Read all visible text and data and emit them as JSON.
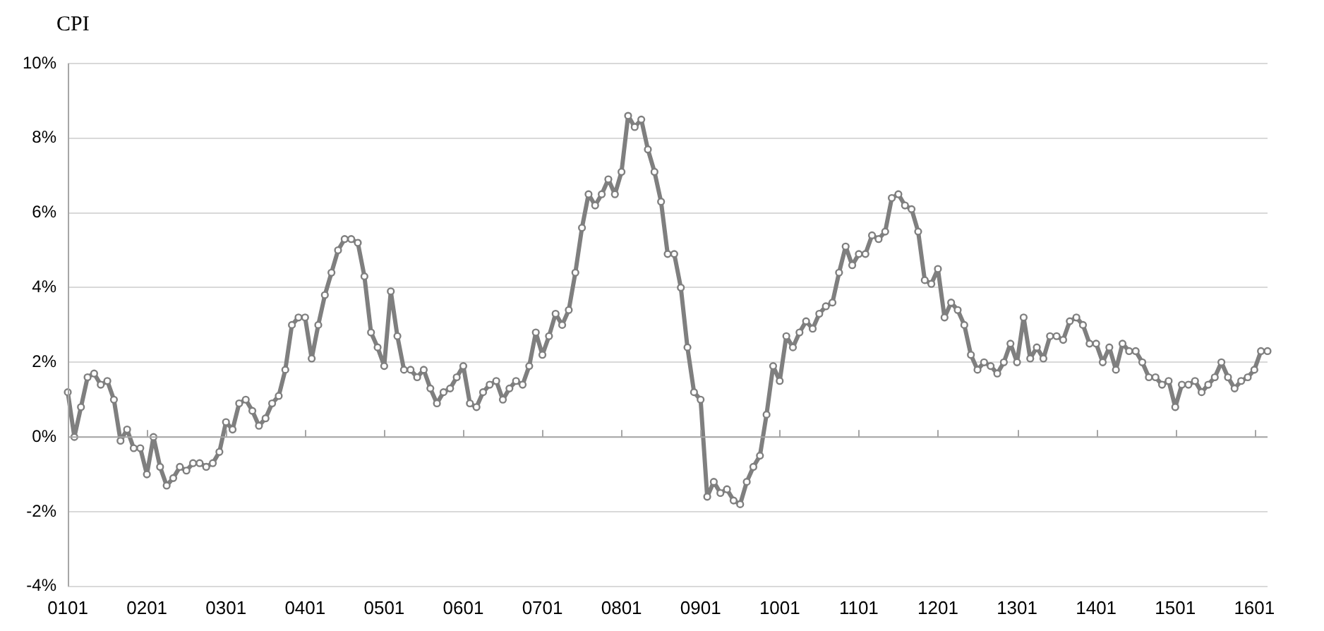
{
  "chart_data": {
    "type": "line",
    "ylabel": "CPI",
    "categories": [
      "0101",
      null,
      null,
      null,
      null,
      null,
      null,
      null,
      null,
      null,
      null,
      null,
      "0201",
      null,
      null,
      null,
      null,
      null,
      null,
      null,
      null,
      null,
      null,
      null,
      "0301",
      null,
      null,
      null,
      null,
      null,
      null,
      null,
      null,
      null,
      null,
      null,
      "0401",
      null,
      null,
      null,
      null,
      null,
      null,
      null,
      null,
      null,
      null,
      null,
      "0501",
      null,
      null,
      null,
      null,
      null,
      null,
      null,
      null,
      null,
      null,
      null,
      "0601",
      null,
      null,
      null,
      null,
      null,
      null,
      null,
      null,
      null,
      null,
      null,
      "0701",
      null,
      null,
      null,
      null,
      null,
      null,
      null,
      null,
      null,
      null,
      null,
      "0801",
      null,
      null,
      null,
      null,
      null,
      null,
      null,
      null,
      null,
      null,
      null,
      "0901",
      null,
      null,
      null,
      null,
      null,
      null,
      null,
      null,
      null,
      null,
      null,
      "1001",
      null,
      null,
      null,
      null,
      null,
      null,
      null,
      null,
      null,
      null,
      null,
      "1101",
      null,
      null,
      null,
      null,
      null,
      null,
      null,
      null,
      null,
      null,
      null,
      "1201",
      null,
      null,
      null,
      null,
      null,
      null,
      null,
      null,
      null,
      null,
      null,
      "1301",
      null,
      null,
      null,
      null,
      null,
      null,
      null,
      null,
      null,
      null,
      null,
      "1401",
      null,
      null,
      null,
      null,
      null,
      null,
      null,
      null,
      null,
      null,
      null,
      "1501",
      null,
      null,
      null,
      null,
      null,
      null,
      null,
      null,
      null,
      null,
      null,
      "1601",
      null,
      null
    ],
    "series": [
      {
        "color": "#7f7f7f",
        "values": [
          1.2,
          0.0,
          0.8,
          1.6,
          1.7,
          1.4,
          1.5,
          1.0,
          -0.1,
          0.2,
          -0.3,
          -0.3,
          -1.0,
          0.0,
          -0.8,
          -1.3,
          -1.1,
          -0.8,
          -0.9,
          -0.7,
          -0.7,
          -0.8,
          -0.7,
          -0.4,
          0.4,
          0.2,
          0.9,
          1.0,
          0.7,
          0.3,
          0.5,
          0.9,
          1.1,
          1.8,
          3.0,
          3.2,
          3.2,
          2.1,
          3.0,
          3.8,
          4.4,
          5.0,
          5.3,
          5.3,
          5.2,
          4.3,
          2.8,
          2.4,
          1.9,
          3.9,
          2.7,
          1.8,
          1.8,
          1.6,
          1.8,
          1.3,
          0.9,
          1.2,
          1.3,
          1.6,
          1.9,
          0.9,
          0.8,
          1.2,
          1.4,
          1.5,
          1.0,
          1.3,
          1.5,
          1.4,
          1.9,
          2.8,
          2.2,
          2.7,
          3.3,
          3.0,
          3.4,
          4.4,
          5.6,
          6.5,
          6.2,
          6.5,
          6.9,
          6.5,
          7.1,
          8.6,
          8.3,
          8.5,
          7.7,
          7.1,
          6.3,
          4.9,
          4.9,
          4.0,
          2.4,
          1.2,
          1.0,
          -1.6,
          -1.2,
          -1.5,
          -1.4,
          -1.7,
          -1.8,
          -1.2,
          -0.8,
          -0.5,
          0.6,
          1.9,
          1.5,
          2.7,
          2.4,
          2.8,
          3.1,
          2.9,
          3.3,
          3.5,
          3.6,
          4.4,
          5.1,
          4.6,
          4.9,
          4.9,
          5.4,
          5.3,
          5.5,
          6.4,
          6.5,
          6.2,
          6.1,
          5.5,
          4.2,
          4.1,
          4.5,
          3.2,
          3.6,
          3.4,
          3.0,
          2.2,
          1.8,
          2.0,
          1.9,
          1.7,
          2.0,
          2.5,
          2.0,
          3.2,
          2.1,
          2.4,
          2.1,
          2.7,
          2.7,
          2.6,
          3.1,
          3.2,
          3.0,
          2.5,
          2.5,
          2.0,
          2.4,
          1.8,
          2.5,
          2.3,
          2.3,
          2.0,
          1.6,
          1.6,
          1.4,
          1.5,
          0.8,
          1.4,
          1.4,
          1.5,
          1.2,
          1.4,
          1.6,
          2.0,
          1.6,
          1.3,
          1.5,
          1.6,
          1.8,
          2.3,
          2.3
        ]
      }
    ],
    "ylim": [
      -4,
      10
    ],
    "yticks": [
      {
        "value": -4,
        "label": "-4%"
      },
      {
        "value": -2,
        "label": "-2%"
      },
      {
        "value": 0,
        "label": "0%"
      },
      {
        "value": 2,
        "label": "2%"
      },
      {
        "value": 4,
        "label": "4%"
      },
      {
        "value": 6,
        "label": "6%"
      },
      {
        "value": 8,
        "label": "8%"
      },
      {
        "value": 10,
        "label": "10%"
      }
    ],
    "grid": "y",
    "legend": false,
    "marker": "circle",
    "line_style": "solid"
  }
}
